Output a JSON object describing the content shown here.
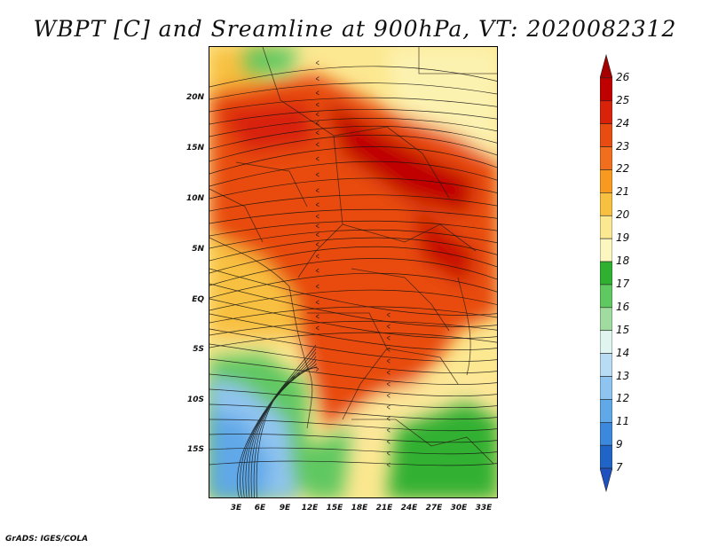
{
  "title": "WBPT [C] and Sreamline at 900hPa, VT: 2020082312",
  "credit": "GrADS: IGES/COLA",
  "map": {
    "lat_labels": [
      "20N",
      "15N",
      "10N",
      "5N",
      "EQ",
      "5S",
      "10S",
      "15S"
    ],
    "lon_labels": [
      "3E",
      "6E",
      "9E",
      "12E",
      "15E",
      "18E",
      "21E",
      "24E",
      "27E",
      "30E",
      "33E"
    ]
  },
  "colorbar": {
    "labels": [
      "26",
      "25",
      "24",
      "23",
      "22",
      "21",
      "20",
      "19",
      "18",
      "17",
      "16",
      "15",
      "14",
      "13",
      "12",
      "11",
      "9",
      "7"
    ],
    "colors": [
      "#a50000",
      "#c00000",
      "#d8220a",
      "#e84c10",
      "#f06e1e",
      "#f89a20",
      "#f8c040",
      "#fce890",
      "#fcf6c0",
      "#30b030",
      "#60c860",
      "#a0dca0",
      "#e0f4f0",
      "#b8dcf4",
      "#90c4f0",
      "#60a8e8",
      "#3c88dc",
      "#2064c8",
      "#1e50c0"
    ]
  }
}
